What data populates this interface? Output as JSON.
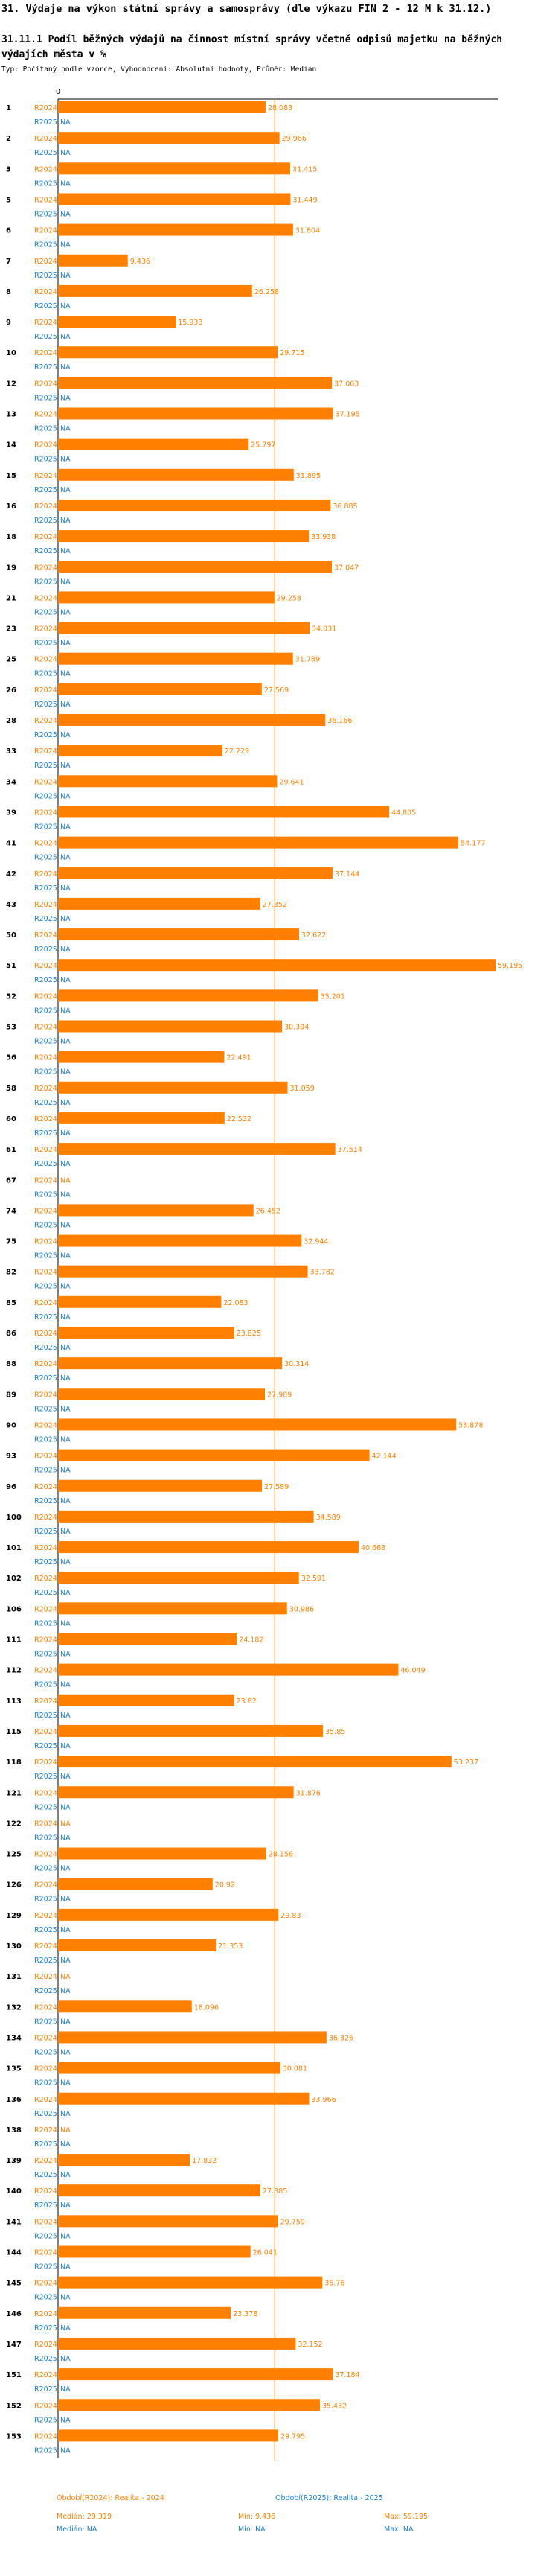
{
  "header": {
    "title": "31. Výdaje na výkon státní správy a samosprávy (dle výkazu FIN 2 - 12 M k 31.12.)",
    "subtitle": "31.11.1 Podíl běžných výdajů na činnost místní správy včetně odpisů majetku na běžných výdajích města v %",
    "type_line": "Typ: Počítaný podle vzorce, Vyhodnocení: Absolutní hodnoty, Průměr: Medián"
  },
  "colors": {
    "series1": "#ff8000",
    "series2": "#1a7fd4",
    "axis": "#000000"
  },
  "chart_data": {
    "type": "bar",
    "orientation": "horizontal",
    "title": "31.11.1 Podíl běžných výdajů na činnost místní správy včetně odpisů majetku na běžných výdajích města v %",
    "x_tick_labels": [
      "0"
    ],
    "xlim": [
      0,
      59.6
    ],
    "median_line": 29.319,
    "categories": [
      "1",
      "2",
      "3",
      "5",
      "6",
      "7",
      "8",
      "9",
      "10",
      "12",
      "13",
      "14",
      "15",
      "16",
      "18",
      "19",
      "21",
      "23",
      "25",
      "26",
      "28",
      "33",
      "34",
      "39",
      "41",
      "42",
      "43",
      "50",
      "51",
      "52",
      "53",
      "56",
      "58",
      "60",
      "61",
      "67",
      "74",
      "75",
      "82",
      "85",
      "86",
      "88",
      "89",
      "90",
      "93",
      "96",
      "100",
      "101",
      "102",
      "106",
      "111",
      "112",
      "113",
      "115",
      "118",
      "121",
      "122",
      "125",
      "126",
      "129",
      "130",
      "131",
      "132",
      "134",
      "135",
      "136",
      "138",
      "139",
      "140",
      "141",
      "144",
      "145",
      "146",
      "147",
      "151",
      "152",
      "153"
    ],
    "series": [
      {
        "name": "R2024",
        "color": "#ff8000",
        "values": [
          28.083,
          29.966,
          31.415,
          31.449,
          31.804,
          9.436,
          26.258,
          15.933,
          29.715,
          37.063,
          37.195,
          25.797,
          31.895,
          36.885,
          33.938,
          37.047,
          29.258,
          34.031,
          31.789,
          27.569,
          36.166,
          22.229,
          29.641,
          44.805,
          54.177,
          37.144,
          27.352,
          32.622,
          59.195,
          35.201,
          30.304,
          22.491,
          31.059,
          22.532,
          37.514,
          null,
          26.452,
          32.944,
          33.782,
          22.083,
          23.825,
          30.314,
          27.989,
          53.878,
          42.144,
          27.589,
          34.589,
          40.668,
          32.591,
          30.986,
          24.182,
          46.049,
          23.82,
          35.85,
          53.237,
          31.876,
          null,
          28.156,
          20.92,
          29.83,
          21.353,
          null,
          18.096,
          36.326,
          30.081,
          33.966,
          null,
          17.832,
          27.385,
          29.759,
          26.041,
          35.76,
          23.378,
          32.152,
          37.184,
          35.432,
          29.795
        ]
      },
      {
        "name": "R2025",
        "color": "#1a7fd4",
        "values": [
          null,
          null,
          null,
          null,
          null,
          null,
          null,
          null,
          null,
          null,
          null,
          null,
          null,
          null,
          null,
          null,
          null,
          null,
          null,
          null,
          null,
          null,
          null,
          null,
          null,
          null,
          null,
          null,
          null,
          null,
          null,
          null,
          null,
          null,
          null,
          null,
          null,
          null,
          null,
          null,
          null,
          null,
          null,
          null,
          null,
          null,
          null,
          null,
          null,
          null,
          null,
          null,
          null,
          null,
          null,
          null,
          null,
          null,
          null,
          null,
          null,
          null,
          null,
          null,
          null,
          null,
          null,
          null,
          null,
          null,
          null,
          null,
          null,
          null,
          null,
          null,
          null
        ]
      }
    ],
    "value_labels": {
      "R2024": [
        "28.083",
        "29.966",
        "31.415",
        "31.449",
        "31.804",
        "9.436",
        "26.258",
        "15.933",
        "29.715",
        "37.063",
        "37.195",
        "25.797",
        "31.895",
        "36.885",
        "33.938",
        "37.047",
        "29.258",
        "34.031",
        "31.789",
        "27.569",
        "36.166",
        "22.229",
        "29.641",
        "44.805",
        "54.177",
        "37.144",
        "27.352",
        "32.622",
        "59.195",
        "35.201",
        "30.304",
        "22.491",
        "31.059",
        "22.532",
        "37.514",
        "",
        "26.452",
        "32.944",
        "33.782",
        "22.083",
        "23.825",
        "30.314",
        "27.989",
        "53.878",
        "42.144",
        "27.589",
        "34.589",
        "40.668",
        "32.591",
        "30.986",
        "24.182",
        "46.049",
        "23.82",
        "35.85",
        "53.237",
        "31.876",
        "",
        "28.156",
        "20.92",
        "29.83",
        "21.353",
        "",
        "18.096",
        "36.326",
        "30.081",
        "33.966",
        "",
        "17.832",
        "27.385",
        "29.759",
        "26.041",
        "35.76",
        "23.378",
        "32.152",
        "37.184",
        "35.432",
        "29.795"
      ],
      "R2025": "NA"
    },
    "legend": {
      "s1_title": "Období(R2024): Realita - 2024",
      "s1_median": "Medián: 29.319",
      "s1_min": "Min: 9.436",
      "s1_max": "Max: 59.195",
      "s2_title": "Období(R2025): Realita - 2025",
      "s2_median": "Medián: NA",
      "s2_min": "Min: NA",
      "s2_max": "Max: NA"
    }
  }
}
